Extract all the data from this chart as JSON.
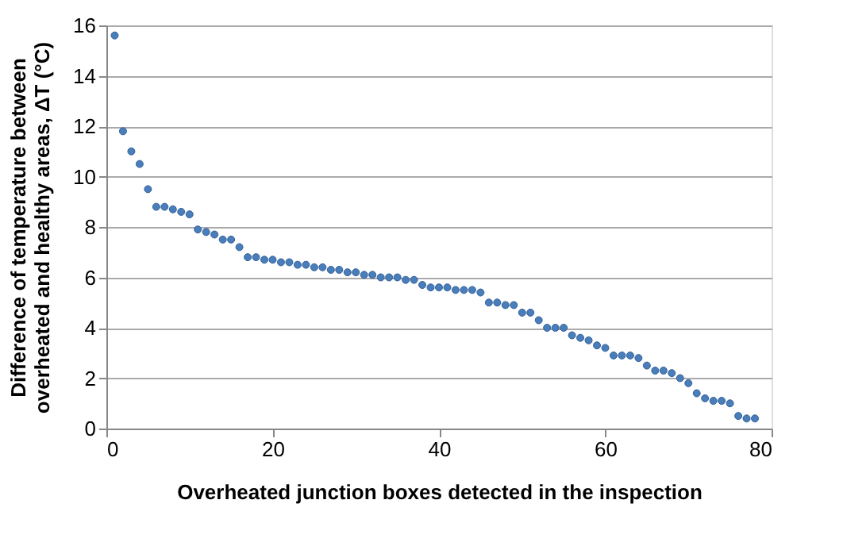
{
  "chart_data": {
    "type": "scatter",
    "xlabel": "Overheated junction boxes detected in the inspection",
    "ylabel": "Difference of temperature between\noverheated and healthy areas, ΔT (°C)",
    "x": [
      1,
      2,
      3,
      4,
      5,
      6,
      7,
      8,
      9,
      10,
      11,
      12,
      13,
      14,
      15,
      16,
      17,
      18,
      19,
      20,
      21,
      22,
      23,
      24,
      25,
      26,
      27,
      28,
      29,
      30,
      31,
      32,
      33,
      34,
      35,
      36,
      37,
      38,
      39,
      40,
      41,
      42,
      43,
      44,
      45,
      46,
      47,
      48,
      49,
      50,
      51,
      52,
      53,
      54,
      55,
      56,
      57,
      58,
      59,
      60,
      61,
      62,
      63,
      64,
      65,
      66,
      67,
      68,
      69,
      70,
      71,
      72,
      73,
      74,
      75,
      76,
      77,
      78
    ],
    "series": [
      {
        "color": "#4a7ebb",
        "values": [
          15.6,
          11.8,
          11.0,
          10.5,
          9.5,
          8.8,
          8.8,
          8.7,
          8.6,
          8.5,
          7.9,
          7.8,
          7.7,
          7.5,
          7.5,
          7.2,
          6.8,
          6.8,
          6.7,
          6.7,
          6.6,
          6.6,
          6.5,
          6.5,
          6.4,
          6.4,
          6.3,
          6.3,
          6.2,
          6.2,
          6.1,
          6.1,
          6.0,
          6.0,
          6.0,
          5.9,
          5.9,
          5.7,
          5.6,
          5.6,
          5.6,
          5.5,
          5.5,
          5.5,
          5.4,
          5.0,
          5.0,
          4.9,
          4.9,
          4.6,
          4.6,
          4.3,
          4.0,
          4.0,
          4.0,
          3.7,
          3.6,
          3.5,
          3.3,
          3.2,
          2.9,
          2.9,
          2.9,
          2.8,
          2.5,
          2.3,
          2.3,
          2.2,
          2.0,
          1.8,
          1.4,
          1.2,
          1.1,
          1.1,
          1.0,
          0.5,
          0.4,
          0.4
        ]
      }
    ],
    "xlim": [
      0,
      80
    ],
    "xticks": [
      0,
      20,
      40,
      60,
      80
    ],
    "ylim": [
      0,
      16
    ],
    "yticks": [
      0,
      2,
      4,
      6,
      8,
      10,
      12,
      14,
      16
    ],
    "grid": "y",
    "marker": "circle",
    "legend": false
  }
}
